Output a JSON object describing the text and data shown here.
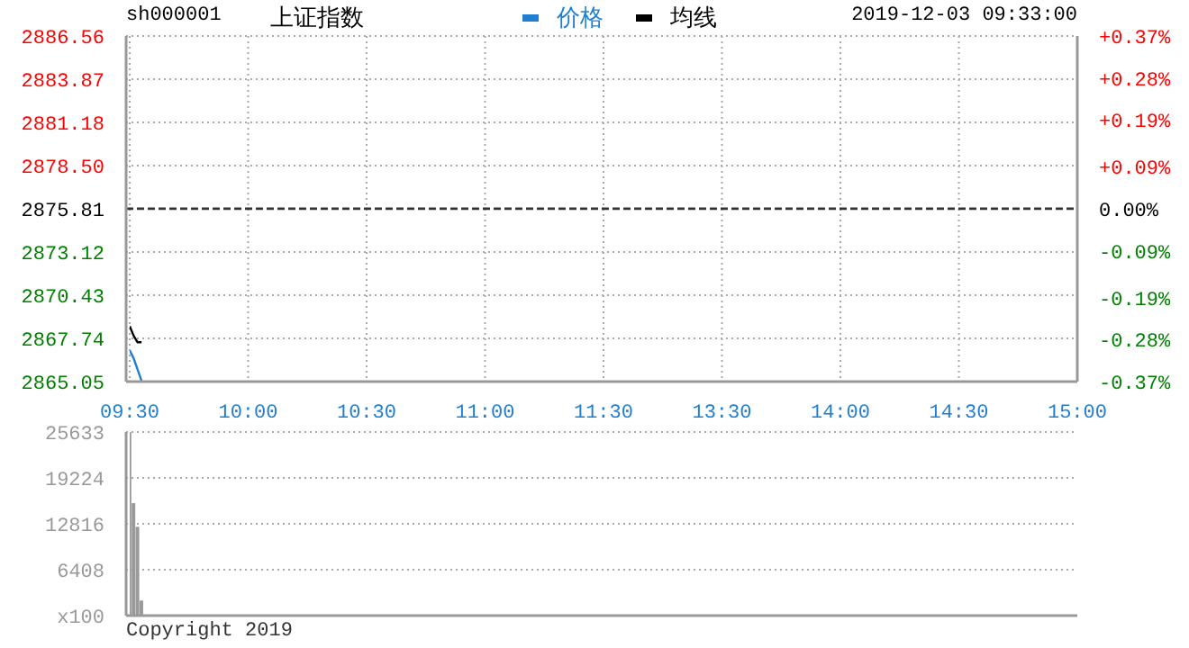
{
  "chart_data": [
    {
      "type": "line",
      "title": "上证指数",
      "subtitle": "sh000001",
      "annotations": [
        "2019-12-03 09:33:00"
      ],
      "legend": "top",
      "grid": true,
      "marker": "none",
      "line_style": "solid",
      "categories": [
        "09:30",
        null,
        null,
        null,
        null,
        null,
        null,
        null,
        null,
        null,
        null,
        null,
        null,
        null,
        null,
        null,
        null,
        null,
        null,
        null,
        null,
        null,
        null,
        null,
        null,
        null,
        null,
        null,
        null,
        null,
        "10:00",
        null,
        null,
        null,
        null,
        null,
        null,
        null,
        null,
        null,
        null,
        null,
        null,
        null,
        null,
        null,
        null,
        null,
        null,
        null,
        null,
        null,
        null,
        null,
        null,
        null,
        null,
        null,
        null,
        null,
        "10:30",
        null,
        null,
        null,
        null,
        null,
        null,
        null,
        null,
        null,
        null,
        null,
        null,
        null,
        null,
        null,
        null,
        null,
        null,
        null,
        null,
        null,
        null,
        null,
        null,
        null,
        null,
        null,
        null,
        null,
        "11:00",
        null,
        null,
        null,
        null,
        null,
        null,
        null,
        null,
        null,
        null,
        null,
        null,
        null,
        null,
        null,
        null,
        null,
        null,
        null,
        null,
        null,
        null,
        null,
        null,
        null,
        null,
        null,
        null,
        null,
        "11:30",
        null,
        null,
        null,
        null,
        null,
        null,
        null,
        null,
        null,
        null,
        null,
        null,
        null,
        null,
        null,
        null,
        null,
        null,
        null,
        null,
        null,
        null,
        null,
        null,
        null,
        null,
        null,
        null,
        null,
        "13:30",
        null,
        null,
        null,
        null,
        null,
        null,
        null,
        null,
        null,
        null,
        null,
        null,
        null,
        null,
        null,
        null,
        null,
        null,
        null,
        null,
        null,
        null,
        null,
        null,
        null,
        null,
        null,
        null,
        null,
        "14:00",
        null,
        null,
        null,
        null,
        null,
        null,
        null,
        null,
        null,
        null,
        null,
        null,
        null,
        null,
        null,
        null,
        null,
        null,
        null,
        null,
        null,
        null,
        null,
        null,
        null,
        null,
        null,
        null,
        null,
        "14:30",
        null,
        null,
        null,
        null,
        null,
        null,
        null,
        null,
        null,
        null,
        null,
        null,
        null,
        null,
        null,
        null,
        null,
        null,
        null,
        null,
        null,
        null,
        null,
        null,
        null,
        null,
        null,
        null,
        null,
        "15:00"
      ],
      "ylim": [
        2865.05,
        2886.56
      ],
      "yticks": [
        2865.05,
        2867.74,
        2870.43,
        2873.12,
        2875.81,
        {
          "value": 2878.5,
          "label": "2878.50"
        },
        2881.18,
        2883.87,
        2886.56
      ],
      "y2lim": [
        -0.37,
        0.37
      ],
      "y2ticks": [
        {
          "value": -0.37,
          "label": "-0.37%"
        },
        {
          "value": -0.28,
          "label": "-0.28%"
        },
        {
          "value": -0.19,
          "label": "-0.19%"
        },
        {
          "value": -0.09,
          "label": "-0.09%"
        },
        {
          "value": 0,
          "label": "0.00%"
        },
        {
          "value": 0.09,
          "label": "+0.09%"
        },
        {
          "value": 0.19,
          "label": "+0.19%"
        },
        {
          "value": 0.28,
          "label": "+0.28%"
        },
        {
          "value": 0.37,
          "label": "+0.37%"
        }
      ],
      "ref_lines": [
        {
          "axis": "y",
          "value": 2875.81,
          "color": "#333333",
          "line_style": "dashed"
        }
      ],
      "series": [
        {
          "name": "价格",
          "color": "#1f7ed0",
          "values": [
            2867.0,
            2866.5,
            2865.8,
            2865.1,
            null,
            null,
            null,
            null,
            null,
            null,
            null,
            null,
            null,
            null,
            null,
            null,
            null,
            null,
            null,
            null,
            null,
            null,
            null,
            null,
            null,
            null,
            null,
            null,
            null,
            null,
            null,
            null,
            null,
            null,
            null,
            null,
            null,
            null,
            null,
            null,
            null,
            null,
            null,
            null,
            null,
            null,
            null,
            null,
            null,
            null,
            null,
            null,
            null,
            null,
            null,
            null,
            null,
            null,
            null,
            null,
            null,
            null,
            null,
            null,
            null,
            null,
            null,
            null,
            null,
            null,
            null,
            null,
            null,
            null,
            null,
            null,
            null,
            null,
            null,
            null,
            null,
            null,
            null,
            null,
            null,
            null,
            null,
            null,
            null,
            null,
            null,
            null,
            null,
            null,
            null,
            null,
            null,
            null,
            null,
            null,
            null,
            null,
            null,
            null,
            null,
            null,
            null,
            null,
            null,
            null,
            null,
            null,
            null,
            null,
            null,
            null,
            null,
            null,
            null,
            null,
            null,
            null,
            null,
            null,
            null,
            null,
            null,
            null,
            null,
            null,
            null,
            null,
            null,
            null,
            null,
            null,
            null,
            null,
            null,
            null,
            null,
            null,
            null,
            null,
            null,
            null,
            null,
            null,
            null,
            null,
            null,
            null,
            null,
            null,
            null,
            null,
            null,
            null,
            null,
            null,
            null,
            null,
            null,
            null,
            null,
            null,
            null,
            null,
            null,
            null,
            null,
            null,
            null,
            null,
            null,
            null,
            null,
            null,
            null,
            null,
            null,
            null,
            null,
            null,
            null,
            null,
            null,
            null,
            null,
            null,
            null,
            null,
            null,
            null,
            null,
            null,
            null,
            null,
            null,
            null,
            null,
            null,
            null,
            null,
            null,
            null,
            null,
            null,
            null,
            null,
            null,
            null,
            null,
            null,
            null,
            null,
            null,
            null,
            null,
            null,
            null,
            null,
            null,
            null,
            null,
            null,
            null,
            null,
            null,
            null,
            null,
            null,
            null,
            null,
            null,
            null,
            null,
            null,
            null,
            null,
            null
          ]
        },
        {
          "name": "均线",
          "color": "#000000",
          "values": [
            2868.5,
            2867.9,
            2867.5,
            2867.5,
            null,
            null,
            null,
            null,
            null,
            null,
            null,
            null,
            null,
            null,
            null,
            null,
            null,
            null,
            null,
            null,
            null,
            null,
            null,
            null,
            null,
            null,
            null,
            null,
            null,
            null,
            null,
            null,
            null,
            null,
            null,
            null,
            null,
            null,
            null,
            null,
            null,
            null,
            null,
            null,
            null,
            null,
            null,
            null,
            null,
            null,
            null,
            null,
            null,
            null,
            null,
            null,
            null,
            null,
            null,
            null,
            null,
            null,
            null,
            null,
            null,
            null,
            null,
            null,
            null,
            null,
            null,
            null,
            null,
            null,
            null,
            null,
            null,
            null,
            null,
            null,
            null,
            null,
            null,
            null,
            null,
            null,
            null,
            null,
            null,
            null,
            null,
            null,
            null,
            null,
            null,
            null,
            null,
            null,
            null,
            null,
            null,
            null,
            null,
            null,
            null,
            null,
            null,
            null,
            null,
            null,
            null,
            null,
            null,
            null,
            null,
            null,
            null,
            null,
            null,
            null,
            null,
            null,
            null,
            null,
            null,
            null,
            null,
            null,
            null,
            null,
            null,
            null,
            null,
            null,
            null,
            null,
            null,
            null,
            null,
            null,
            null,
            null,
            null,
            null,
            null,
            null,
            null,
            null,
            null,
            null,
            null,
            null,
            null,
            null,
            null,
            null,
            null,
            null,
            null,
            null,
            null,
            null,
            null,
            null,
            null,
            null,
            null,
            null,
            null,
            null,
            null,
            null,
            null,
            null,
            null,
            null,
            null,
            null,
            null,
            null,
            null,
            null,
            null,
            null,
            null,
            null,
            null,
            null,
            null,
            null,
            null,
            null,
            null,
            null,
            null,
            null,
            null,
            null,
            null,
            null,
            null,
            null,
            null,
            null,
            null,
            null,
            null,
            null,
            null,
            null,
            null,
            null,
            null,
            null,
            null,
            null,
            null,
            null,
            null,
            null,
            null,
            null,
            null,
            null,
            null,
            null,
            null,
            null,
            null,
            null,
            null,
            null,
            null,
            null,
            null,
            null,
            null,
            null,
            null,
            null,
            null
          ]
        }
      ]
    },
    {
      "type": "bar",
      "annotations": [
        "Copyright 2019"
      ],
      "grid": true,
      "tick_labels": "y",
      "color": "#999999",
      "categories": [
        null,
        null,
        null,
        null,
        null,
        null,
        null,
        null,
        null,
        null,
        null,
        null,
        null,
        null,
        null,
        null,
        null,
        null,
        null,
        null,
        null,
        null,
        null,
        null,
        null,
        null,
        null,
        null,
        null,
        null,
        null,
        null,
        null,
        null,
        null,
        null,
        null,
        null,
        null,
        null,
        null,
        null,
        null,
        null,
        null,
        null,
        null,
        null,
        null,
        null,
        null,
        null,
        null,
        null,
        null,
        null,
        null,
        null,
        null,
        null,
        null,
        null,
        null,
        null,
        null,
        null,
        null,
        null,
        null,
        null,
        null,
        null,
        null,
        null,
        null,
        null,
        null,
        null,
        null,
        null,
        null,
        null,
        null,
        null,
        null,
        null,
        null,
        null,
        null,
        null,
        null,
        null,
        null,
        null,
        null,
        null,
        null,
        null,
        null,
        null,
        null,
        null,
        null,
        null,
        null,
        null,
        null,
        null,
        null,
        null,
        null,
        null,
        null,
        null,
        null,
        null,
        null,
        null,
        null,
        null,
        null,
        null,
        null,
        null,
        null,
        null,
        null,
        null,
        null,
        null,
        null,
        null,
        null,
        null,
        null,
        null,
        null,
        null,
        null,
        null,
        null,
        null,
        null,
        null,
        null,
        null,
        null,
        null,
        null,
        null,
        null,
        null,
        null,
        null,
        null,
        null,
        null,
        null,
        null,
        null,
        null,
        null,
        null,
        null,
        null,
        null,
        null,
        null,
        null,
        null,
        null,
        null,
        null,
        null,
        null,
        null,
        null,
        null,
        null,
        null,
        null,
        null,
        null,
        null,
        null,
        null,
        null,
        null,
        null,
        null,
        null,
        null,
        null,
        null,
        null,
        null,
        null,
        null,
        null,
        null,
        null,
        null,
        null,
        null,
        null,
        null,
        null,
        null,
        null,
        null,
        null,
        null,
        null,
        null,
        null,
        null,
        null,
        null,
        null,
        null,
        null,
        null,
        null,
        null,
        null,
        null,
        null,
        null,
        null,
        null,
        null,
        null,
        null,
        null,
        null,
        null,
        null,
        null,
        null,
        null,
        null
      ],
      "values": [
        25600,
        15700,
        12400,
        2100,
        null,
        null,
        null,
        null,
        null,
        null,
        null,
        null,
        null,
        null,
        null,
        null,
        null,
        null,
        null,
        null,
        null,
        null,
        null,
        null,
        null,
        null,
        null,
        null,
        null,
        null,
        null,
        null,
        null,
        null,
        null,
        null,
        null,
        null,
        null,
        null,
        null,
        null,
        null,
        null,
        null,
        null,
        null,
        null,
        null,
        null,
        null,
        null,
        null,
        null,
        null,
        null,
        null,
        null,
        null,
        null,
        null,
        null,
        null,
        null,
        null,
        null,
        null,
        null,
        null,
        null,
        null,
        null,
        null,
        null,
        null,
        null,
        null,
        null,
        null,
        null,
        null,
        null,
        null,
        null,
        null,
        null,
        null,
        null,
        null,
        null,
        null,
        null,
        null,
        null,
        null,
        null,
        null,
        null,
        null,
        null,
        null,
        null,
        null,
        null,
        null,
        null,
        null,
        null,
        null,
        null,
        null,
        null,
        null,
        null,
        null,
        null,
        null,
        null,
        null,
        null,
        null,
        null,
        null,
        null,
        null,
        null,
        null,
        null,
        null,
        null,
        null,
        null,
        null,
        null,
        null,
        null,
        null,
        null,
        null,
        null,
        null,
        null,
        null,
        null,
        null,
        null,
        null,
        null,
        null,
        null,
        null,
        null,
        null,
        null,
        null,
        null,
        null,
        null,
        null,
        null,
        null,
        null,
        null,
        null,
        null,
        null,
        null,
        null,
        null,
        null,
        null,
        null,
        null,
        null,
        null,
        null,
        null,
        null,
        null,
        null,
        null,
        null,
        null,
        null,
        null,
        null,
        null,
        null,
        null,
        null,
        null,
        null,
        null,
        null,
        null,
        null,
        null,
        null,
        null,
        null,
        null,
        null,
        null,
        null,
        null,
        null,
        null,
        null,
        null,
        null,
        null,
        null,
        null,
        null,
        null,
        null,
        null,
        null,
        null,
        null,
        null,
        null,
        null,
        null,
        null,
        null,
        null,
        null,
        null,
        null,
        null,
        null,
        null,
        null,
        null,
        null,
        null,
        null,
        null,
        null,
        null
      ],
      "ylim": [
        0,
        25633
      ],
      "yticks": [
        {
          "value": 0,
          "label": "x100"
        },
        6408,
        12816,
        19224,
        25633
      ]
    }
  ]
}
